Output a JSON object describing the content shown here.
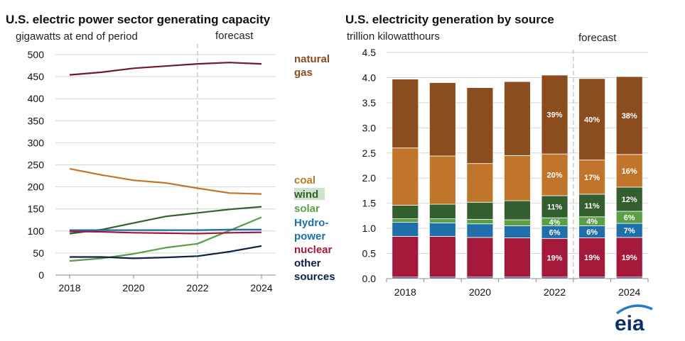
{
  "colors": {
    "natural_gas_line": "#701a25",
    "natural_gas_bar": "#8b4c1e",
    "coal": "#c0752b",
    "wind": "#325f2d",
    "solar": "#5a9f48",
    "hydro": "#1f70aa",
    "nuclear": "#a4193a",
    "other": "#0f1f4b",
    "grid": "#d4d4d4"
  },
  "logo": "eia",
  "chart_data": [
    {
      "type": "line",
      "title": "U.S. electric power sector generating capacity",
      "subtitle": "gigawatts at end of period",
      "forecast_label": "forecast",
      "forecast_start": 2022,
      "x": [
        2018,
        2019,
        2020,
        2021,
        2022,
        2023,
        2024
      ],
      "xticks": [
        "2018",
        "2020",
        "2022",
        "2024"
      ],
      "ylim": [
        0,
        500
      ],
      "yticks": [
        "0",
        "50",
        "100",
        "150",
        "200",
        "250",
        "300",
        "350",
        "400",
        "450",
        "500"
      ],
      "grid": true,
      "series": [
        {
          "key": "natural_gas",
          "values": [
            454,
            460,
            469,
            474,
            479,
            482,
            479
          ]
        },
        {
          "key": "coal",
          "values": [
            241,
            227,
            215,
            209,
            197,
            186,
            184
          ]
        },
        {
          "key": "wind",
          "values": [
            94,
            103,
            118,
            133,
            141,
            149,
            155
          ]
        },
        {
          "key": "solar",
          "values": [
            32,
            38,
            48,
            62,
            71,
            101,
            131
          ]
        },
        {
          "key": "hydro",
          "values": [
            102,
            102,
            102,
            102,
            102,
            103,
            103
          ]
        },
        {
          "key": "nuclear",
          "values": [
            99,
            98,
            96,
            95,
            94,
            96,
            97
          ]
        },
        {
          "key": "other",
          "values": [
            41,
            41,
            38,
            40,
            43,
            53,
            66
          ]
        }
      ],
      "legend": [
        {
          "key": "natural_gas",
          "lines": [
            "natural",
            "gas"
          ]
        },
        {
          "key": "coal",
          "lines": [
            "coal"
          ]
        },
        {
          "key": "wind",
          "lines": [
            "wind"
          ]
        },
        {
          "key": "solar",
          "lines": [
            "solar"
          ]
        },
        {
          "key": "hydro",
          "lines": [
            "Hydro-",
            "power"
          ]
        },
        {
          "key": "nuclear",
          "lines": [
            "nuclear"
          ]
        },
        {
          "key": "other",
          "lines": [
            "other",
            "sources"
          ]
        }
      ]
    },
    {
      "type": "bar",
      "title": "U.S. electricity generation by source",
      "subtitle": "trillion kilowatthours",
      "forecast_label": "forecast",
      "forecast_start": 2023,
      "categories": [
        "2018",
        "2019",
        "2020",
        "2021",
        "2022",
        "2023",
        "2024"
      ],
      "xticks": [
        "2018",
        "2020",
        "2022",
        "2024"
      ],
      "ylim": [
        0,
        4.5
      ],
      "yticks": [
        "0.0",
        "0.5",
        "1.0",
        "1.5",
        "2.0",
        "2.5",
        "3.0",
        "3.5",
        "4.0",
        "4.5"
      ],
      "stack_order": [
        "other",
        "nuclear",
        "hydro",
        "solar",
        "wind",
        "coal",
        "natural_gas"
      ],
      "series": [
        {
          "key": "other",
          "values": [
            0.03,
            0.03,
            0.03,
            0.03,
            0.03,
            0.03,
            0.03
          ]
        },
        {
          "key": "nuclear",
          "values": [
            0.81,
            0.81,
            0.79,
            0.78,
            0.77,
            0.78,
            0.79
          ]
        },
        {
          "key": "hydro",
          "values": [
            0.28,
            0.27,
            0.27,
            0.24,
            0.25,
            0.24,
            0.28
          ]
        },
        {
          "key": "solar",
          "values": [
            0.07,
            0.08,
            0.09,
            0.12,
            0.16,
            0.18,
            0.24
          ]
        },
        {
          "key": "wind",
          "values": [
            0.27,
            0.29,
            0.34,
            0.38,
            0.44,
            0.45,
            0.48
          ]
        },
        {
          "key": "coal",
          "values": [
            1.14,
            0.96,
            0.77,
            0.9,
            0.83,
            0.68,
            0.65
          ]
        },
        {
          "key": "natural_gas",
          "values": [
            1.37,
            1.46,
            1.51,
            1.47,
            1.57,
            1.62,
            1.55
          ]
        }
      ],
      "data_labels": [
        {
          "category": "2022",
          "key": "natural_gas",
          "text": "39%"
        },
        {
          "category": "2023",
          "key": "natural_gas",
          "text": "40%"
        },
        {
          "category": "2024",
          "key": "natural_gas",
          "text": "38%"
        },
        {
          "category": "2022",
          "key": "coal",
          "text": "20%"
        },
        {
          "category": "2023",
          "key": "coal",
          "text": "17%"
        },
        {
          "category": "2024",
          "key": "coal",
          "text": "16%"
        },
        {
          "category": "2022",
          "key": "wind",
          "text": "11%"
        },
        {
          "category": "2023",
          "key": "wind",
          "text": "11%"
        },
        {
          "category": "2024",
          "key": "wind",
          "text": "12%"
        },
        {
          "category": "2022",
          "key": "solar",
          "text": "4%"
        },
        {
          "category": "2023",
          "key": "solar",
          "text": "4%"
        },
        {
          "category": "2024",
          "key": "solar",
          "text": "6%"
        },
        {
          "category": "2022",
          "key": "hydro",
          "text": "6%"
        },
        {
          "category": "2023",
          "key": "hydro",
          "text": "6%"
        },
        {
          "category": "2024",
          "key": "hydro",
          "text": "7%"
        },
        {
          "category": "2022",
          "key": "nuclear",
          "text": "19%"
        },
        {
          "category": "2023",
          "key": "nuclear",
          "text": "19%"
        },
        {
          "category": "2024",
          "key": "nuclear",
          "text": "19%"
        }
      ]
    }
  ]
}
